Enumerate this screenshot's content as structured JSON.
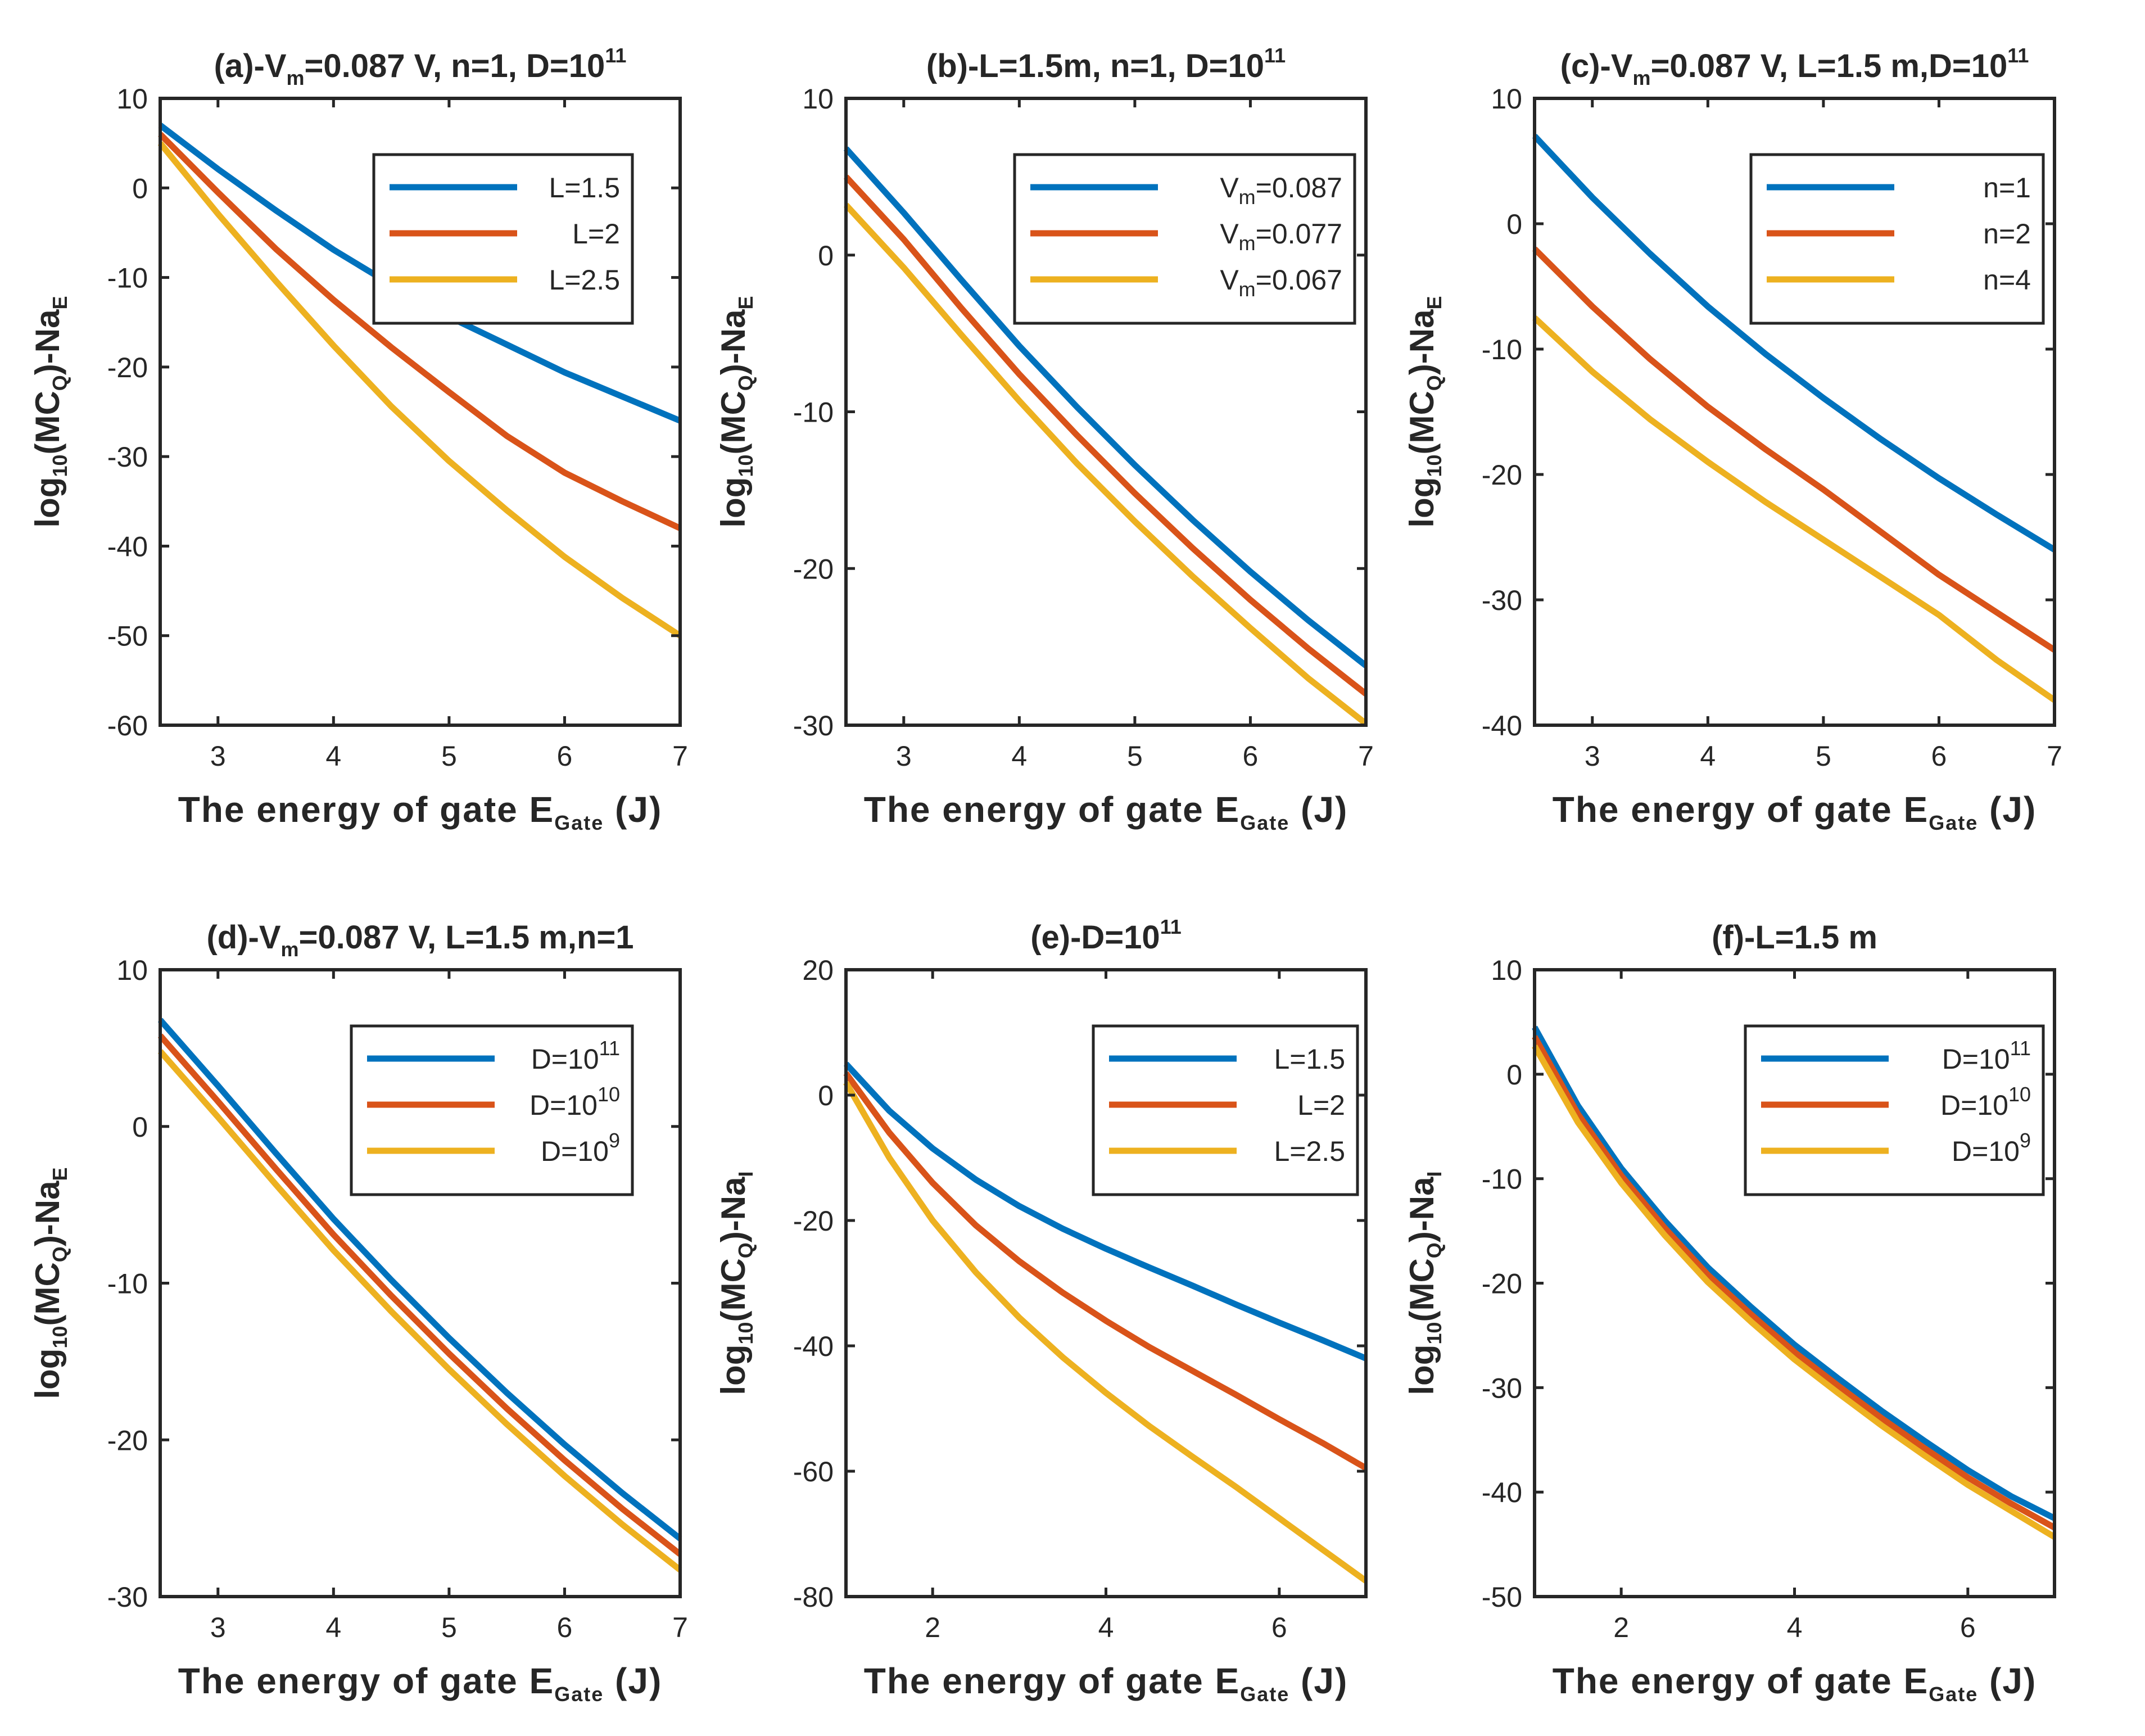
{
  "chart_data": [
    {
      "type": "line",
      "title": "(a)-V_m=0.087  V,  n=1,  D=10^11",
      "title_parts": {
        "pre": "(a)-V",
        "sub": "m",
        "mid": "=0.087  V,  n=1,  D=10",
        "sup": "11",
        "post": ""
      },
      "xlabel": {
        "pre": "The  energy  of  gate  E",
        "sub": "Gate",
        "post": "  (J)"
      },
      "ylabel": {
        "pre": "log",
        "sub1": "10",
        "mid": "(MC",
        "sub2": "Q",
        "mid2": ")-Na",
        "sub3": "E"
      },
      "xlim": [
        2.5,
        7
      ],
      "ylim": [
        -60,
        10
      ],
      "xticks": [
        3,
        4,
        5,
        6,
        7
      ],
      "yticks": [
        10,
        0,
        -10,
        -20,
        -30,
        -40,
        -50,
        -60
      ],
      "x": [
        2.5,
        3,
        3.5,
        4,
        4.5,
        5,
        5.5,
        6,
        6.5,
        7
      ],
      "series": [
        {
          "name": "L=1.5",
          "legend": {
            "pre": "L=1.5",
            "sub": "",
            "sup": ""
          },
          "values": [
            7.0,
            2.1,
            -2.5,
            -6.9,
            -10.8,
            -14.4,
            -17.5,
            -20.6,
            -23.3,
            -26.0
          ]
        },
        {
          "name": "L=2",
          "legend": {
            "pre": "L=2",
            "sub": "",
            "sup": ""
          },
          "values": [
            6.0,
            -0.5,
            -6.8,
            -12.5,
            -17.8,
            -22.8,
            -27.7,
            -31.8,
            -35.0,
            -38.0
          ]
        },
        {
          "name": "L=2.5",
          "legend": {
            "pre": "L=2.5",
            "sub": "",
            "sup": ""
          },
          "values": [
            5.0,
            -2.9,
            -10.4,
            -17.6,
            -24.4,
            -30.5,
            -36.0,
            -41.2,
            -45.8,
            -50.0
          ]
        }
      ]
    },
    {
      "type": "line",
      "title": "(b)-L=1.5m,  n=1,  D=10^11",
      "title_parts": {
        "pre": "(b)-L=1.5m,  n=1,  D=10",
        "sub": "",
        "mid": "",
        "sup": "11",
        "post": ""
      },
      "xlabel": {
        "pre": "The  energy  of  gate  E",
        "sub": "Gate",
        "post": "  (J)"
      },
      "ylabel": {
        "pre": "log",
        "sub1": "10",
        "mid": "(MC",
        "sub2": "Q",
        "mid2": ")-Na",
        "sub3": "E"
      },
      "xlim": [
        2.5,
        7
      ],
      "ylim": [
        -30,
        10
      ],
      "xticks": [
        3,
        4,
        5,
        6,
        7
      ],
      "yticks": [
        10,
        0,
        -10,
        -20,
        -30
      ],
      "x": [
        2.5,
        3,
        3.5,
        4,
        4.5,
        5,
        5.5,
        6,
        6.5,
        7
      ],
      "series": [
        {
          "name": "V_m=0.087",
          "legend": {
            "pre": "V",
            "sub": "m",
            "post": "=0.087"
          },
          "values": [
            6.8,
            2.7,
            -1.6,
            -5.8,
            -9.7,
            -13.4,
            -16.9,
            -20.2,
            -23.3,
            -26.2
          ]
        },
        {
          "name": "V_m=0.077",
          "legend": {
            "pre": "V",
            "sub": "m",
            "post": "=0.077"
          },
          "values": [
            5.0,
            1.0,
            -3.4,
            -7.6,
            -11.5,
            -15.2,
            -18.7,
            -22.0,
            -25.1,
            -28.0
          ]
        },
        {
          "name": "V_m=0.067",
          "legend": {
            "pre": "V",
            "sub": "m",
            "post": "=0.067"
          },
          "values": [
            3.2,
            -0.8,
            -5.1,
            -9.3,
            -13.3,
            -17.0,
            -20.5,
            -23.8,
            -27.0,
            -29.9
          ]
        }
      ]
    },
    {
      "type": "line",
      "title": "(c)-V_m=0.087  V,  L=1.5  m,D=10^11",
      "title_parts": {
        "pre": "(c)-V",
        "sub": "m",
        "mid": "=0.087  V,  L=1.5  m,D=10",
        "sup": "11",
        "post": ""
      },
      "xlabel": {
        "pre": "The  energy  of  gate  E",
        "sub": "Gate",
        "post": "  (J)"
      },
      "ylabel": {
        "pre": "log",
        "sub1": "10",
        "mid": "(MC",
        "sub2": "Q",
        "mid2": ")-Na",
        "sub3": "E"
      },
      "xlim": [
        2.5,
        7
      ],
      "ylim": [
        -40,
        10
      ],
      "xticks": [
        3,
        4,
        5,
        6,
        7
      ],
      "yticks": [
        10,
        0,
        -10,
        -20,
        -30,
        -40
      ],
      "x": [
        2.5,
        3,
        3.5,
        4,
        4.5,
        5,
        5.5,
        6,
        6.5,
        7
      ],
      "series": [
        {
          "name": "n=1",
          "legend": {
            "pre": "n=1",
            "sub": "",
            "sup": ""
          },
          "values": [
            7.0,
            2.1,
            -2.4,
            -6.6,
            -10.4,
            -13.9,
            -17.2,
            -20.3,
            -23.2,
            -26.0
          ]
        },
        {
          "name": "n=2",
          "legend": {
            "pre": "n=2",
            "sub": "",
            "sup": ""
          },
          "values": [
            -2.0,
            -6.6,
            -10.8,
            -14.6,
            -18.0,
            -21.2,
            -24.6,
            -28.0,
            -31.0,
            -34.0
          ]
        },
        {
          "name": "n=4",
          "legend": {
            "pre": "n=4",
            "sub": "",
            "sup": ""
          },
          "values": [
            -7.5,
            -11.8,
            -15.6,
            -19.0,
            -22.2,
            -25.2,
            -28.2,
            -31.2,
            -34.8,
            -38.0
          ]
        }
      ]
    },
    {
      "type": "line",
      "title": "(d)-V_m=0.087  V,  L=1.5  m,n=1",
      "title_parts": {
        "pre": "(d)-V",
        "sub": "m",
        "mid": "=0.087  V,  L=1.5  m,n=1",
        "sup": "",
        "post": ""
      },
      "xlabel": {
        "pre": "The  energy  of  gate  E",
        "sub": "Gate",
        "post": "  (J)"
      },
      "ylabel": {
        "pre": "log",
        "sub1": "10",
        "mid": "(MC",
        "sub2": "Q",
        "mid2": ")-Na",
        "sub3": "E"
      },
      "xlim": [
        2.5,
        7
      ],
      "ylim": [
        -30,
        10
      ],
      "xticks": [
        3,
        4,
        5,
        6,
        7
      ],
      "yticks": [
        10,
        0,
        -10,
        -20,
        -30
      ],
      "x": [
        2.5,
        3,
        3.5,
        4,
        4.5,
        5,
        5.5,
        6,
        6.5,
        7
      ],
      "series": [
        {
          "name": "D=10^11",
          "legend": {
            "pre": "D=10",
            "sub": "",
            "sup": "11"
          },
          "values": [
            6.8,
            2.6,
            -1.7,
            -5.9,
            -9.8,
            -13.5,
            -17.0,
            -20.3,
            -23.4,
            -26.3
          ]
        },
        {
          "name": "D=10^10",
          "legend": {
            "pre": "D=10",
            "sub": "",
            "sup": "10"
          },
          "values": [
            5.8,
            1.6,
            -2.7,
            -6.9,
            -10.8,
            -14.5,
            -18.0,
            -21.3,
            -24.4,
            -27.3
          ]
        },
        {
          "name": "D=10^9",
          "legend": {
            "pre": "D=10",
            "sub": "",
            "sup": "9"
          },
          "values": [
            4.8,
            0.6,
            -3.7,
            -7.9,
            -11.8,
            -15.5,
            -19.0,
            -22.3,
            -25.4,
            -28.3
          ]
        }
      ]
    },
    {
      "type": "line",
      "title": "(e)-D=10^11",
      "title_parts": {
        "pre": "(e)-D=10",
        "sub": "",
        "mid": "",
        "sup": "11",
        "post": ""
      },
      "xlabel": {
        "pre": "The  energy  of  gate  E",
        "sub": "Gate",
        "post": "  (J)"
      },
      "ylabel": {
        "pre": "log",
        "sub1": "10",
        "mid": "(MC",
        "sub2": "Q",
        "mid2": ")-Na",
        "sub3": "I"
      },
      "xlim": [
        1,
        7
      ],
      "ylim": [
        -80,
        20
      ],
      "xticks": [
        2,
        4,
        6
      ],
      "yticks": [
        20,
        0,
        -20,
        -40,
        -60,
        -80
      ],
      "x": [
        1,
        1.5,
        2,
        2.5,
        3,
        3.5,
        4,
        4.5,
        5,
        5.5,
        6,
        6.5,
        7
      ],
      "series": [
        {
          "name": "L=1.5",
          "legend": {
            "pre": "L=1.5",
            "sub": "",
            "sup": ""
          },
          "values": [
            5.0,
            -2.5,
            -8.5,
            -13.5,
            -17.7,
            -21.3,
            -24.5,
            -27.5,
            -30.4,
            -33.4,
            -36.3,
            -39.1,
            -42.0
          ]
        },
        {
          "name": "L=2",
          "legend": {
            "pre": "L=2",
            "sub": "",
            "sup": ""
          },
          "values": [
            3.5,
            -6.0,
            -14.0,
            -20.8,
            -26.5,
            -31.5,
            -36.0,
            -40.2,
            -44.0,
            -47.8,
            -51.7,
            -55.5,
            -59.5
          ]
        },
        {
          "name": "L=2.5",
          "legend": {
            "pre": "L=2.5",
            "sub": "",
            "sup": ""
          },
          "values": [
            2.0,
            -10.0,
            -20.0,
            -28.3,
            -35.5,
            -41.8,
            -47.5,
            -52.8,
            -57.7,
            -62.5,
            -67.5,
            -72.5,
            -77.5
          ]
        }
      ]
    },
    {
      "type": "line",
      "title": "(f)-L=1.5 m",
      "title_parts": {
        "pre": "(f)-L=1.5 m",
        "sub": "",
        "mid": "",
        "sup": "",
        "post": ""
      },
      "xlabel": {
        "pre": "The  energy  of  gate  E",
        "sub": "Gate",
        "post": "  (J)"
      },
      "ylabel": {
        "pre": "log",
        "sub1": "10",
        "mid": "(MC",
        "sub2": "Q",
        "mid2": ")-Na",
        "sub3": "I"
      },
      "xlim": [
        1,
        7
      ],
      "ylim": [
        -50,
        10
      ],
      "xticks": [
        2,
        4,
        6
      ],
      "yticks": [
        10,
        0,
        -10,
        -20,
        -30,
        -40,
        -50
      ],
      "x": [
        1,
        1.5,
        2,
        2.5,
        3,
        3.5,
        4,
        4.5,
        5,
        5.5,
        6,
        6.5,
        7
      ],
      "series": [
        {
          "name": "D=10^11",
          "legend": {
            "pre": "D=10",
            "sub": "",
            "sup": "11"
          },
          "values": [
            4.5,
            -3.0,
            -9.0,
            -14.0,
            -18.5,
            -22.3,
            -25.9,
            -29.1,
            -32.2,
            -35.1,
            -37.9,
            -40.4,
            -42.5
          ]
        },
        {
          "name": "D=10^10",
          "legend": {
            "pre": "D=10",
            "sub": "",
            "sup": "10"
          },
          "values": [
            3.6,
            -3.8,
            -9.7,
            -14.7,
            -19.2,
            -23.0,
            -26.6,
            -29.8,
            -32.9,
            -35.8,
            -38.6,
            -41.1,
            -43.4
          ]
        },
        {
          "name": "D=10^9",
          "legend": {
            "pre": "D=10",
            "sub": "",
            "sup": "9"
          },
          "values": [
            2.7,
            -4.6,
            -10.4,
            -15.4,
            -19.9,
            -23.7,
            -27.3,
            -30.5,
            -33.6,
            -36.5,
            -39.3,
            -41.8,
            -44.3
          ]
        }
      ]
    }
  ],
  "colors": {
    "series": [
      "#0072BD",
      "#D95319",
      "#EDB120"
    ],
    "axis": "#262626"
  }
}
